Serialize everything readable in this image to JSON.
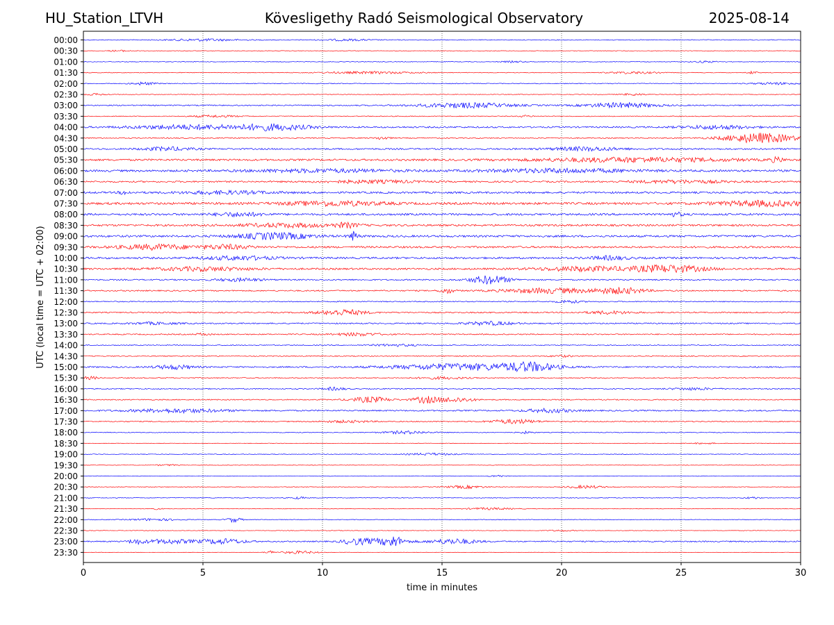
{
  "header": {
    "station": "HU_Station_LTVH",
    "observatory": "Kövesligethy Radó Seismological Observatory",
    "date": "2025-08-14"
  },
  "chart_data": {
    "type": "line",
    "title": "Kövesligethy Radó Seismological Observatory",
    "xlabel": "time in minutes",
    "ylabel": "UTC (local time = UTC + 02:00)",
    "xlim": [
      0,
      30
    ],
    "xticks": [
      "0",
      "5",
      "10",
      "15",
      "20",
      "25",
      "30"
    ],
    "grid": "vertical dotted",
    "colors": {
      "even_rows": "#0000ff",
      "odd_rows": "#ff0000",
      "axes": "#000000"
    },
    "rows": [
      {
        "label": "00:00",
        "noise": 0.6,
        "events": [
          [
            5.0,
            1.5,
            1.5
          ],
          [
            11.0,
            1.0,
            1.2
          ]
        ]
      },
      {
        "label": "00:30",
        "noise": 0.4,
        "events": [
          [
            1.5,
            0.5,
            1.0
          ]
        ]
      },
      {
        "label": "01:00",
        "noise": 0.5,
        "events": [
          [
            18.0,
            0.5,
            1.0
          ],
          [
            26.0,
            0.5,
            1.2
          ]
        ]
      },
      {
        "label": "01:30",
        "noise": 0.5,
        "events": [
          [
            12.0,
            2.0,
            1.5
          ],
          [
            23.0,
            1.0,
            1.5
          ],
          [
            28.0,
            0.2,
            2.0
          ]
        ]
      },
      {
        "label": "02:00",
        "noise": 0.6,
        "events": [
          [
            2.5,
            0.5,
            2.0
          ],
          [
            29.0,
            1.0,
            1.5
          ]
        ]
      },
      {
        "label": "02:30",
        "noise": 0.5,
        "events": [
          [
            0.5,
            0.5,
            1.2
          ],
          [
            23.0,
            0.5,
            1.5
          ]
        ]
      },
      {
        "label": "03:00",
        "noise": 0.9,
        "events": [
          [
            16.0,
            2.0,
            3.5
          ],
          [
            22.5,
            1.5,
            3.5
          ]
        ]
      },
      {
        "label": "03:30",
        "noise": 0.6,
        "events": [
          [
            5.5,
            1.0,
            1.5
          ],
          [
            18.5,
            0.3,
            1.2
          ]
        ]
      },
      {
        "label": "04:00",
        "noise": 1.2,
        "events": [
          [
            4.5,
            2.5,
            3.0
          ],
          [
            8.0,
            1.5,
            4.0
          ],
          [
            26.5,
            1.5,
            2.5
          ]
        ]
      },
      {
        "label": "04:30",
        "noise": 0.8,
        "events": [
          [
            12.5,
            0.3,
            2.0
          ],
          [
            28.3,
            1.5,
            7.0
          ]
        ]
      },
      {
        "label": "05:00",
        "noise": 1.2,
        "events": [
          [
            3.5,
            1.0,
            2.5
          ],
          [
            21.0,
            1.5,
            2.5
          ]
        ]
      },
      {
        "label": "05:30",
        "noise": 1.5,
        "events": [
          [
            23.0,
            4.0,
            3.0
          ],
          [
            29.0,
            0.3,
            3.0
          ]
        ]
      },
      {
        "label": "06:00",
        "noise": 1.6,
        "events": [
          [
            10.0,
            3.0,
            2.0
          ],
          [
            20.0,
            3.0,
            2.5
          ]
        ]
      },
      {
        "label": "06:30",
        "noise": 1.2,
        "events": [
          [
            12.0,
            2.0,
            2.0
          ],
          [
            25.0,
            2.0,
            2.0
          ]
        ]
      },
      {
        "label": "07:00",
        "noise": 1.5,
        "events": [
          [
            1.7,
            0.2,
            2.5
          ],
          [
            6.0,
            2.0,
            2.0
          ]
        ]
      },
      {
        "label": "07:30",
        "noise": 1.8,
        "events": [
          [
            10.5,
            2.0,
            3.0
          ],
          [
            28.5,
            2.0,
            3.5
          ]
        ]
      },
      {
        "label": "08:00",
        "noise": 1.6,
        "events": [
          [
            6.5,
            1.0,
            2.5
          ],
          [
            24.8,
            0.3,
            2.5
          ]
        ]
      },
      {
        "label": "08:30",
        "noise": 1.5,
        "events": [
          [
            8.5,
            2.0,
            2.5
          ],
          [
            11.0,
            0.5,
            3.0
          ]
        ]
      },
      {
        "label": "09:00",
        "noise": 1.6,
        "events": [
          [
            8.0,
            1.5,
            4.5
          ],
          [
            11.3,
            0.2,
            6.0
          ]
        ]
      },
      {
        "label": "09:30",
        "noise": 1.5,
        "events": [
          [
            3.0,
            1.5,
            3.5
          ],
          [
            6.0,
            1.0,
            3.0
          ]
        ]
      },
      {
        "label": "10:00",
        "noise": 1.5,
        "events": [
          [
            6.5,
            1.5,
            2.5
          ],
          [
            22.0,
            0.8,
            2.5
          ]
        ]
      },
      {
        "label": "10:30",
        "noise": 1.4,
        "events": [
          [
            5.0,
            2.0,
            2.5
          ],
          [
            21.0,
            2.0,
            3.0
          ],
          [
            24.5,
            1.5,
            5.0
          ]
        ]
      },
      {
        "label": "11:00",
        "noise": 1.0,
        "events": [
          [
            17.0,
            0.8,
            6.0
          ],
          [
            6.5,
            1.0,
            2.0
          ]
        ]
      },
      {
        "label": "11:30",
        "noise": 1.0,
        "events": [
          [
            15.2,
            0.3,
            3.5
          ],
          [
            19.5,
            2.0,
            3.5
          ],
          [
            22.5,
            1.0,
            4.0
          ]
        ]
      },
      {
        "label": "12:00",
        "noise": 0.8,
        "events": [
          [
            20.3,
            0.5,
            2.0
          ]
        ]
      },
      {
        "label": "12:30",
        "noise": 1.0,
        "events": [
          [
            10.8,
            1.0,
            4.0
          ],
          [
            22.0,
            1.0,
            2.0
          ]
        ]
      },
      {
        "label": "13:00",
        "noise": 1.0,
        "events": [
          [
            17.0,
            1.0,
            2.5
          ],
          [
            3.0,
            1.0,
            1.5
          ]
        ]
      },
      {
        "label": "13:30",
        "noise": 0.9,
        "events": [
          [
            5.0,
            0.3,
            1.5
          ],
          [
            11.5,
            1.0,
            2.0
          ]
        ]
      },
      {
        "label": "14:00",
        "noise": 0.7,
        "events": [
          [
            13.0,
            1.0,
            1.5
          ]
        ]
      },
      {
        "label": "14:30",
        "noise": 0.7,
        "events": [
          [
            20.0,
            0.5,
            1.2
          ]
        ]
      },
      {
        "label": "15:00",
        "noise": 1.1,
        "events": [
          [
            3.8,
            0.8,
            3.0
          ],
          [
            16.0,
            3.0,
            4.5
          ],
          [
            18.7,
            1.0,
            5.0
          ]
        ]
      },
      {
        "label": "15:30",
        "noise": 0.8,
        "events": [
          [
            0.3,
            0.3,
            2.0
          ],
          [
            15.0,
            1.0,
            1.5
          ]
        ]
      },
      {
        "label": "16:00",
        "noise": 0.8,
        "events": [
          [
            10.5,
            0.5,
            2.0
          ],
          [
            25.5,
            1.0,
            1.5
          ]
        ]
      },
      {
        "label": "16:30",
        "noise": 0.8,
        "events": [
          [
            12.0,
            0.8,
            4.0
          ],
          [
            14.3,
            0.5,
            4.5
          ],
          [
            15.5,
            0.8,
            3.5
          ]
        ]
      },
      {
        "label": "17:00",
        "noise": 1.1,
        "events": [
          [
            4.0,
            2.0,
            2.5
          ],
          [
            19.5,
            1.0,
            2.5
          ]
        ]
      },
      {
        "label": "17:30",
        "noise": 0.8,
        "events": [
          [
            18.0,
            1.0,
            3.0
          ],
          [
            11.0,
            1.0,
            1.5
          ]
        ]
      },
      {
        "label": "18:00",
        "noise": 0.6,
        "events": [
          [
            13.5,
            1.0,
            2.0
          ],
          [
            18.5,
            0.3,
            1.5
          ]
        ]
      },
      {
        "label": "18:30",
        "noise": 0.4,
        "events": [
          [
            26.0,
            0.5,
            1.0
          ]
        ]
      },
      {
        "label": "19:00",
        "noise": 0.5,
        "events": [
          [
            14.5,
            1.0,
            1.5
          ]
        ]
      },
      {
        "label": "19:30",
        "noise": 0.4,
        "events": [
          [
            3.5,
            0.5,
            1.0
          ]
        ]
      },
      {
        "label": "20:00",
        "noise": 0.4,
        "events": [
          [
            17.3,
            0.3,
            1.5
          ]
        ]
      },
      {
        "label": "20:30",
        "noise": 0.5,
        "events": [
          [
            16.0,
            0.8,
            2.0
          ],
          [
            21.0,
            0.8,
            2.0
          ]
        ]
      },
      {
        "label": "21:00",
        "noise": 0.5,
        "events": [
          [
            9.0,
            0.3,
            1.5
          ],
          [
            28.0,
            0.3,
            1.5
          ]
        ]
      },
      {
        "label": "21:30",
        "noise": 0.4,
        "events": [
          [
            17.0,
            1.0,
            1.5
          ],
          [
            3.0,
            0.3,
            1.0
          ]
        ]
      },
      {
        "label": "22:00",
        "noise": 0.5,
        "events": [
          [
            3.0,
            1.0,
            1.5
          ],
          [
            6.3,
            0.3,
            3.5
          ]
        ]
      },
      {
        "label": "22:30",
        "noise": 0.4,
        "events": [
          [
            20.0,
            0.5,
            1.0
          ]
        ]
      },
      {
        "label": "23:00",
        "noise": 1.0,
        "events": [
          [
            2.2,
            0.3,
            3.0
          ],
          [
            3.5,
            1.0,
            3.0
          ],
          [
            5.8,
            1.0,
            3.5
          ],
          [
            11.3,
            0.5,
            3.5
          ],
          [
            12.5,
            1.0,
            4.0
          ],
          [
            13.0,
            0.3,
            5.0
          ],
          [
            15.5,
            1.0,
            3.5
          ]
        ]
      },
      {
        "label": "23:30",
        "noise": 0.3,
        "events": [
          [
            7.8,
            0.2,
            2.0
          ],
          [
            9.0,
            0.8,
            2.0
          ]
        ]
      }
    ]
  }
}
